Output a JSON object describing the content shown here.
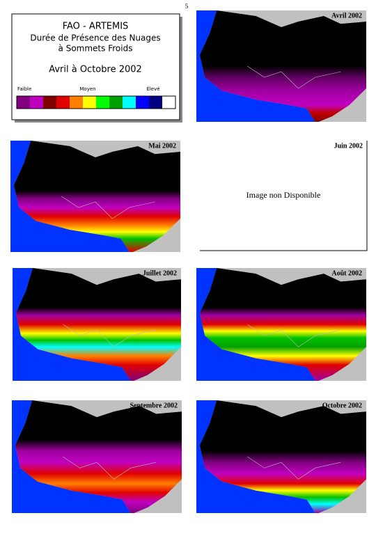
{
  "page_number": "5",
  "legend": {
    "title": "FAO - ARTEMIS",
    "subtitle": [
      "Durée de Présence des Nuages",
      "à Sommets Froids"
    ],
    "period": "Avril à Octobre 2002",
    "scale_labels": [
      "Faible",
      "Moyen",
      "Élevé"
    ],
    "colors": [
      "#800080",
      "#c000c0",
      "#800000",
      "#e00000",
      "#ff8000",
      "#ffff00",
      "#00ff00",
      "#00a000",
      "#00ffff",
      "#0000ff",
      "#000080",
      "#ffffff"
    ]
  },
  "panels": [
    {
      "label": "Avril 2002"
    },
    {
      "label": "Mai 2002"
    },
    {
      "label": "Juin 2002",
      "note": "Image non Disponible"
    },
    {
      "label": "Juillet 2002"
    },
    {
      "label": "Août 2002"
    },
    {
      "label": "Septembre 2002"
    },
    {
      "label": "Octobre 2002"
    }
  ]
}
